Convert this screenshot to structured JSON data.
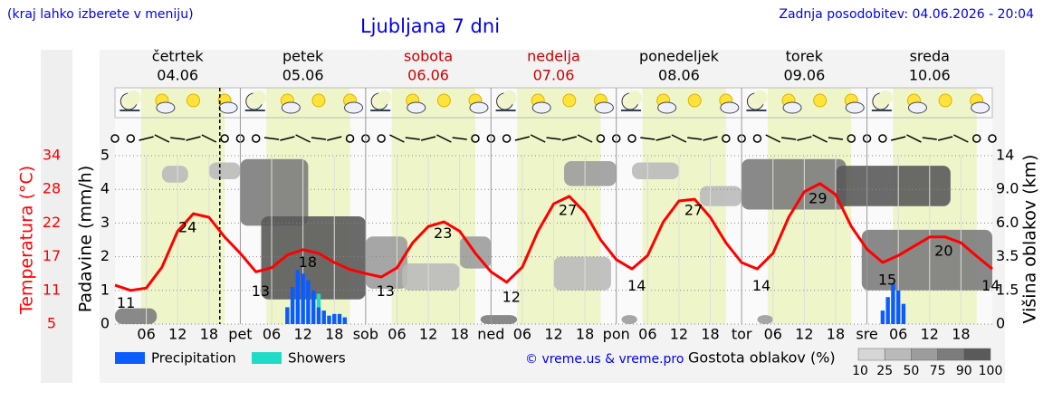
{
  "chart_data": {
    "type": "meteogram",
    "title": "Ljubljana 7 dni",
    "note": "(kraj lahko izberete v meniju)",
    "updated": "Zadnja posodobitev: 04.06.2026 - 20:04",
    "copyright": "© vreme.us & vreme.pro",
    "days": [
      {
        "name": "četrtek",
        "date": "04.06",
        "color": "#000000"
      },
      {
        "name": "petek",
        "date": "05.06",
        "color": "#000000"
      },
      {
        "name": "sobota",
        "date": "06.06",
        "color": "#cc0000"
      },
      {
        "name": "nedelja",
        "date": "07.06",
        "color": "#cc0000"
      },
      {
        "name": "ponedeljek",
        "date": "08.06",
        "color": "#000000"
      },
      {
        "name": "torek",
        "date": "09.06",
        "color": "#000000"
      },
      {
        "name": "sreda",
        "date": "10.06",
        "color": "#000000"
      }
    ],
    "xlim": [
      0,
      168
    ],
    "xticks": [
      {
        "value": 6,
        "label": "06"
      },
      {
        "value": 12,
        "label": "12"
      },
      {
        "value": 18,
        "label": "18"
      },
      {
        "value": 24,
        "label": "pet"
      },
      {
        "value": 30,
        "label": "06"
      },
      {
        "value": 36,
        "label": "12"
      },
      {
        "value": 42,
        "label": "18"
      },
      {
        "value": 48,
        "label": "sob"
      },
      {
        "value": 54,
        "label": "06"
      },
      {
        "value": 60,
        "label": "12"
      },
      {
        "value": 66,
        "label": "18"
      },
      {
        "value": 72,
        "label": "ned"
      },
      {
        "value": 78,
        "label": "06"
      },
      {
        "value": 84,
        "label": "12"
      },
      {
        "value": 90,
        "label": "18"
      },
      {
        "value": 96,
        "label": "pon"
      },
      {
        "value": 102,
        "label": "06"
      },
      {
        "value": 108,
        "label": "12"
      },
      {
        "value": 114,
        "label": "18"
      },
      {
        "value": 120,
        "label": "tor"
      },
      {
        "value": 126,
        "label": "06"
      },
      {
        "value": 132,
        "label": "12"
      },
      {
        "value": 138,
        "label": "18"
      },
      {
        "value": 144,
        "label": "sre"
      },
      {
        "value": 150,
        "label": "06"
      },
      {
        "value": 156,
        "label": "12"
      },
      {
        "value": 162,
        "label": "18"
      }
    ],
    "daylight": [
      5,
      21
    ],
    "now": 20.07,
    "ylabel": "Padavine (mm/h)",
    "ylim": [
      0,
      5
    ],
    "yticks": [
      0,
      1,
      2,
      3,
      4,
      5
    ],
    "grid": true,
    "series": [
      {
        "name": "Precipitation",
        "color": "#0a5cff",
        "x": [
          33,
          34,
          35,
          36,
          37,
          38,
          39,
          40,
          41,
          42,
          43,
          44,
          147,
          148,
          149,
          150,
          151
        ],
        "values": [
          0.5,
          1.1,
          1.6,
          1.5,
          1.3,
          1.0,
          0.5,
          0.4,
          0.25,
          0.3,
          0.3,
          0.2,
          0.4,
          0.8,
          1.2,
          1.0,
          0.6
        ]
      },
      {
        "name": "Showers",
        "color": "#1fdcc8",
        "x": [
          39
        ],
        "values": [
          0.4
        ]
      }
    ],
    "temperature": {
      "label": "Temperatura (°C)",
      "color": "#ff0000",
      "lim": [
        5,
        34
      ],
      "ticks": [
        5,
        {
          "value": 10.8,
          "label": "11"
        },
        {
          "value": 16.6,
          "label": "17"
        },
        {
          "value": 22.4,
          "label": "22"
        },
        {
          "value": 28.2,
          "label": "28"
        },
        34
      ],
      "x": [
        0,
        3,
        6,
        9,
        12,
        15,
        18,
        21,
        24,
        27,
        30,
        33,
        36,
        39,
        42,
        45,
        48,
        51,
        54,
        57,
        60,
        63,
        66,
        69,
        72,
        75,
        78,
        81,
        84,
        87,
        90,
        93,
        96,
        99,
        102,
        105,
        108,
        111,
        114,
        117,
        120,
        123,
        126,
        129,
        132,
        135,
        138,
        141,
        144,
        147,
        150,
        153,
        156,
        159,
        162,
        165,
        168
      ],
      "values": [
        11.7,
        10.8,
        11.2,
        14.8,
        21,
        24,
        23.4,
        20,
        17.2,
        14,
        14.7,
        16.9,
        17.8,
        17.2,
        15.6,
        14.4,
        13.7,
        13.1,
        14.7,
        19,
        21.8,
        22.6,
        21,
        17.2,
        14,
        12.2,
        14.8,
        21,
        25.7,
        27,
        24.2,
        19.5,
        16.1,
        14.5,
        16.8,
        22.6,
        26.2,
        26.5,
        23.4,
        19,
        15.6,
        14.5,
        17.2,
        23.4,
        27.8,
        29.2,
        27.3,
        21.8,
        17.9,
        15.6,
        16.8,
        18.4,
        20,
        20,
        19,
        16.7,
        14.5
      ]
    },
    "temp_labels": {
      "x": [
        2.1,
        13.9,
        27.9,
        36.9,
        51.8,
        62.8,
        75.9,
        86.7,
        99.9,
        110.8,
        123.8,
        134.6,
        147.9,
        158.7,
        167.7
      ],
      "values": [
        11,
        24,
        13,
        18,
        13,
        23,
        12,
        27,
        14,
        27,
        14,
        29,
        15,
        20,
        14
      ]
    },
    "cloud_axis": {
      "label": "Višina oblakov (km)",
      "ticks": [
        0,
        1.5,
        3.5,
        {
          "value": 6,
          "label": "6.0"
        },
        {
          "value": 9,
          "label": "9.0"
        },
        14
      ]
    },
    "clouds": {
      "label": "Gostota oblakov (%)",
      "legend_ticks": [
        10,
        25,
        50,
        75,
        90,
        100
      ],
      "legend_colors": [
        "#d6d6d6",
        "#bababa",
        "#9c9c9c",
        "#7c7c7c",
        "#5a5a5a"
      ],
      "cells": [
        {
          "x": [
            0,
            8
          ],
          "z": [
            0,
            0.7
          ],
          "density": 75
        },
        {
          "x": [
            9,
            14
          ],
          "z": [
            10,
            12.5
          ],
          "density": 25
        },
        {
          "x": [
            18,
            24
          ],
          "z": [
            10.5,
            13
          ],
          "density": 25
        },
        {
          "x": [
            48,
            56
          ],
          "z": [
            1.6,
            5
          ],
          "density": 50
        },
        {
          "x": [
            55,
            66
          ],
          "z": [
            1.5,
            3.1
          ],
          "density": 25
        },
        {
          "x": [
            66,
            72
          ],
          "z": [
            2.8,
            5
          ],
          "density": 50
        },
        {
          "x": [
            24,
            37
          ],
          "z": [
            5.8,
            13.5
          ],
          "density": 75
        },
        {
          "x": [
            28,
            48
          ],
          "z": [
            1.1,
            6.6
          ],
          "density": 90
        },
        {
          "x": [
            70,
            77
          ],
          "z": [
            0,
            0.4
          ],
          "density": 75
        },
        {
          "x": [
            84,
            95
          ],
          "z": [
            1.5,
            3.5
          ],
          "density": 25
        },
        {
          "x": [
            86,
            96
          ],
          "z": [
            9.5,
            13.2
          ],
          "density": 50
        },
        {
          "x": [
            97,
            100
          ],
          "z": [
            0,
            0.4
          ],
          "density": 50
        },
        {
          "x": [
            99,
            108
          ],
          "z": [
            10.5,
            13
          ],
          "density": 25
        },
        {
          "x": [
            112,
            120
          ],
          "z": [
            7.5,
            9.5
          ],
          "density": 25
        },
        {
          "x": [
            123,
            126
          ],
          "z": [
            0,
            0.4
          ],
          "density": 50
        },
        {
          "x": [
            120,
            140
          ],
          "z": [
            7.2,
            13.5
          ],
          "density": 75
        },
        {
          "x": [
            143,
            168
          ],
          "z": [
            1.5,
            5.5
          ],
          "density": 75
        },
        {
          "x": [
            138,
            160
          ],
          "z": [
            7.5,
            12.5
          ],
          "density": 90
        }
      ]
    }
  }
}
